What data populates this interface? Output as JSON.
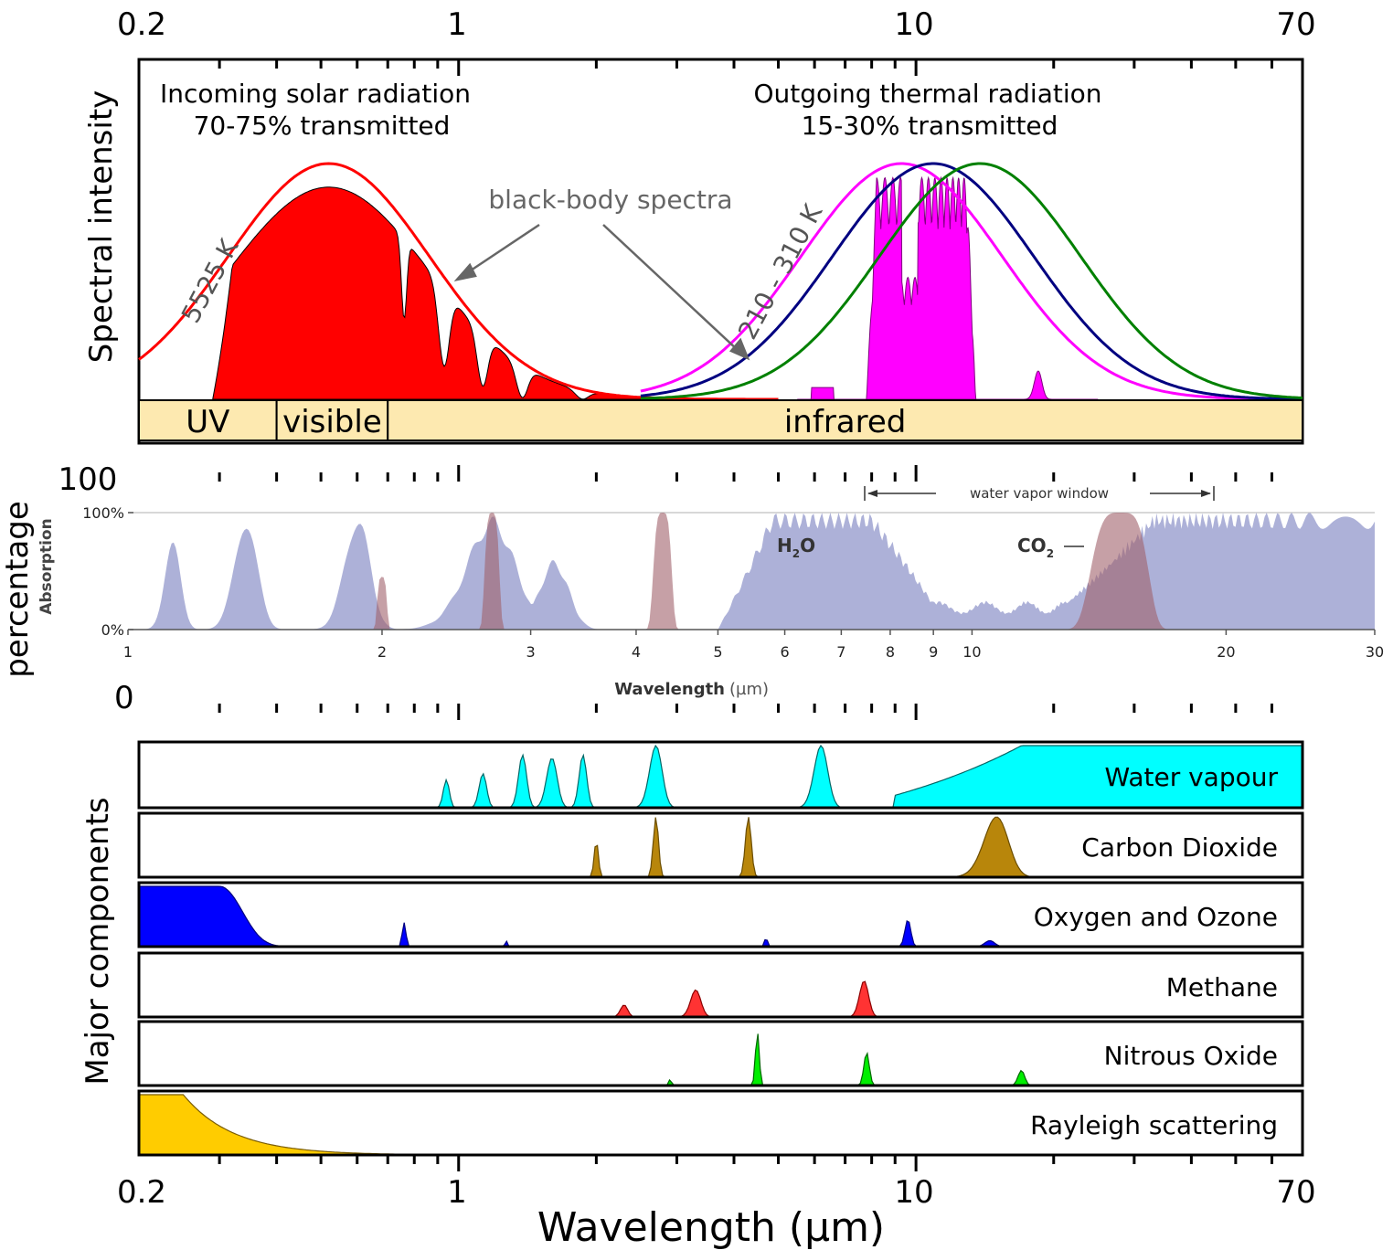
{
  "chart_data": [
    {
      "type": "area",
      "panel": "spectral-intensity",
      "x_scale": "log",
      "xlim": [
        0.2,
        70
      ],
      "top_ticks": [
        "0.2",
        "1",
        "10",
        "70"
      ],
      "ylabel": "Spectral intensity",
      "solar": {
        "title_line1": "Incoming solar radiation",
        "title_line2": "70-75% transmitted",
        "blackbody_label": "5525 K",
        "blackbody_peak_um": 0.52,
        "transmitted_fill_color": "#ff0000"
      },
      "thermal": {
        "title_line1": "Outgoing thermal radiation",
        "title_line2": "15-30% transmitted",
        "blackbody_label": "210 - 310 K",
        "curves": [
          {
            "peak_um": 9.3,
            "color": "#ff00ff"
          },
          {
            "peak_um": 10.9,
            "color": "#000080"
          },
          {
            "peak_um": 13.8,
            "color": "#008000"
          }
        ],
        "transmitted_fill_color": "#ff00ff"
      },
      "annotation": "black-body spectra",
      "bands": [
        {
          "label": "UV",
          "from_um": 0.2,
          "to_um": 0.4
        },
        {
          "label": "visible",
          "from_um": 0.4,
          "to_um": 0.7
        },
        {
          "label": "infrared",
          "from_um": 0.7,
          "to_um": 70
        }
      ]
    },
    {
      "type": "area",
      "panel": "absorption",
      "x_scale": "log",
      "xlim": [
        1,
        30
      ],
      "ylim": [
        0,
        100
      ],
      "xlabel_bold": "Wavelength",
      "xlabel_unit": "(µm)",
      "ylabel": "Absorption",
      "cut_off_label_top": "100",
      "cut_off_label_side": "percentage",
      "y_ticks": [
        "0%",
        "100%"
      ],
      "x_ticks": [
        {
          "x": 1,
          "label": "1"
        },
        {
          "x": 2,
          "label": "2"
        },
        {
          "x": 3,
          "label": "3"
        },
        {
          "x": 4,
          "label": "4"
        },
        {
          "x": 5,
          "label": "5"
        },
        {
          "x": 6,
          "label": "6"
        },
        {
          "x": 7,
          "label": "7"
        },
        {
          "x": 8,
          "label": "8"
        },
        {
          "x": 9,
          "label": "9"
        },
        {
          "x": 10,
          "label": "10"
        },
        {
          "x": 20,
          "label": "20"
        },
        {
          "x": 30,
          "label": "30"
        }
      ],
      "window_label": "water vapor window",
      "window_range_um": [
        8,
        14
      ],
      "series": [
        {
          "name": "H2O",
          "label_main": "H",
          "label_sub": "2",
          "label_end": "O",
          "color": "#9fa3d1"
        },
        {
          "name": "CO2",
          "label_main": "CO",
          "label_sub": "2",
          "color": "#a0606a"
        }
      ]
    },
    {
      "type": "area",
      "panel": "major-components",
      "x_scale": "log",
      "xlim": [
        0.2,
        70
      ],
      "ylabel": "Major components",
      "xlabel": "Wavelength (µm)",
      "bottom_ticks": [
        "0.2",
        "1",
        "10",
        "70"
      ],
      "edge_label": "0",
      "series": [
        {
          "name": "Water vapour",
          "color": "#00ffff",
          "stroke": "#006666"
        },
        {
          "name": "Carbon Dioxide",
          "color": "#b8860b",
          "stroke": "#6b4d00"
        },
        {
          "name": "Oxygen and Ozone",
          "color": "#0000ff",
          "stroke": "#000080"
        },
        {
          "name": "Methane",
          "color": "#ff3333",
          "stroke": "#8b0000"
        },
        {
          "name": "Nitrous Oxide",
          "color": "#00ee00",
          "stroke": "#006600"
        },
        {
          "name": "Rayleigh scattering",
          "color": "#ffcc00",
          "stroke": "#7a5c00"
        }
      ]
    }
  ]
}
